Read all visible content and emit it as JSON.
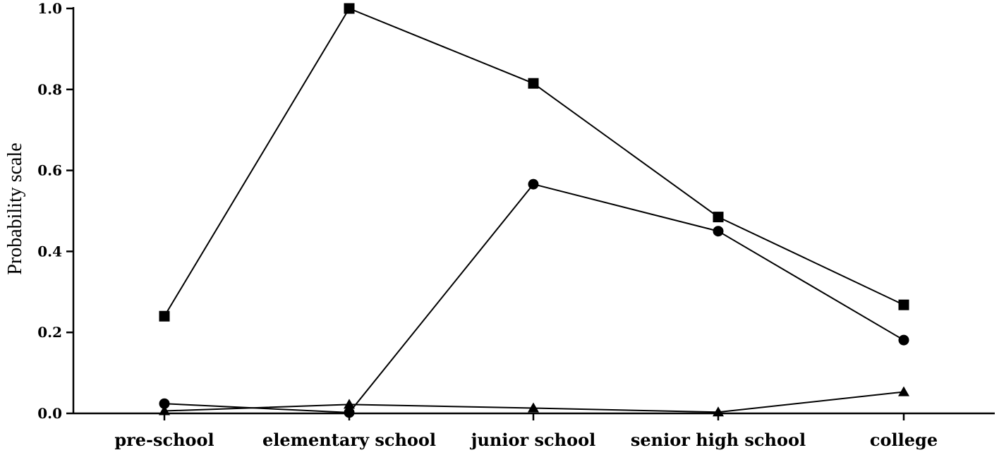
{
  "chart_data": {
    "type": "line",
    "title": "",
    "xlabel": "",
    "ylabel": "Probability scale",
    "categories": [
      "pre-school",
      "elementary school",
      "junior school",
      "senior high school",
      "college"
    ],
    "ylim": [
      0,
      1.0
    ],
    "yticks": [
      "0.0",
      "0.2",
      "0.4",
      "0.6",
      "0.8",
      "1.0"
    ],
    "grid": false,
    "legend": "none",
    "series": [
      {
        "marker": "square",
        "values": [
          0.24,
          1.0,
          0.815,
          0.485,
          0.268
        ]
      },
      {
        "marker": "circle",
        "values": [
          0.024,
          0.002,
          0.566,
          0.45,
          0.181
        ]
      },
      {
        "marker": "triangle",
        "values": [
          0.006,
          0.022,
          0.013,
          0.003,
          0.053
        ]
      }
    ]
  }
}
